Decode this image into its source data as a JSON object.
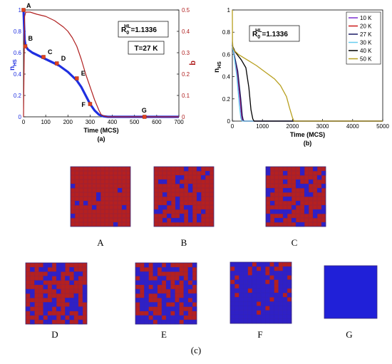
{
  "figure_caption": "(c)",
  "chart_data": [
    {
      "type": "line",
      "panel_label": "(a)",
      "xlabel": "Time (MCS)",
      "ylabel_left": "n",
      "ylabel_left_sub": "HS",
      "ylabel_right": "q",
      "xlim": [
        0,
        700
      ],
      "ylim_left": [
        0,
        1
      ],
      "ylim_right": [
        0,
        0.5
      ],
      "x_ticks": [
        0,
        100,
        200,
        300,
        400,
        500,
        600,
        700
      ],
      "y_ticks_left": [
        0,
        0.2,
        0.4,
        0.6,
        0.8,
        1
      ],
      "y_ticks_right": [
        0,
        0.1,
        0.2,
        0.3,
        0.4,
        0.5
      ],
      "annotation_R": "R",
      "annotation_R_sub": "0",
      "annotation_R_sup": "HL",
      "annotation_R_value": "=1.1336",
      "annotation_T": "T=27 K",
      "series": [
        {
          "axis": "left",
          "color": "#1f2fe0",
          "x": [
            0,
            5,
            10,
            20,
            40,
            60,
            80,
            100,
            120,
            140,
            160,
            180,
            200,
            220,
            240,
            260,
            280,
            300,
            320,
            340,
            360,
            380,
            400,
            500,
            600,
            700
          ],
          "y": [
            1.0,
            0.72,
            0.66,
            0.63,
            0.6,
            0.58,
            0.56,
            0.54,
            0.52,
            0.5,
            0.48,
            0.45,
            0.42,
            0.38,
            0.34,
            0.28,
            0.2,
            0.12,
            0.06,
            0.02,
            0.005,
            0.0,
            0.0,
            0.0,
            0.0,
            0.0
          ]
        },
        {
          "axis": "right",
          "color": "#b02020",
          "x": [
            0,
            5,
            10,
            30,
            60,
            100,
            140,
            180,
            200,
            220,
            240,
            260,
            280,
            300,
            320,
            340,
            350,
            360,
            380,
            400,
            500,
            600,
            700
          ],
          "y": [
            0.0,
            0.47,
            0.49,
            0.49,
            0.48,
            0.47,
            0.45,
            0.42,
            0.4,
            0.37,
            0.33,
            0.27,
            0.2,
            0.14,
            0.08,
            0.03,
            0.01,
            0.005,
            0.0,
            0.0,
            0.0,
            0.0,
            0.0
          ]
        }
      ],
      "markers": [
        {
          "label": "A",
          "x": 0,
          "y": 1.0
        },
        {
          "label": "B",
          "x": 8,
          "y": 0.66
        },
        {
          "label": "C",
          "x": 90,
          "y": 0.56
        },
        {
          "label": "D",
          "x": 150,
          "y": 0.5
        },
        {
          "label": "E",
          "x": 240,
          "y": 0.36
        },
        {
          "label": "F",
          "x": 300,
          "y": 0.12
        },
        {
          "label": "G",
          "x": 545,
          "y": 0.0
        }
      ]
    },
    {
      "type": "line",
      "panel_label": "(b)",
      "xlabel": "Time (MCS)",
      "ylabel": "n",
      "ylabel_sub": "HS",
      "xlim": [
        0,
        5000
      ],
      "ylim": [
        0,
        1
      ],
      "x_ticks": [
        0,
        1000,
        2000,
        3000,
        4000,
        5000
      ],
      "y_ticks": [
        0,
        0.2,
        0.4,
        0.6,
        0.8,
        1
      ],
      "annotation_R": "R",
      "annotation_R_sub": "0",
      "annotation_R_sup": "HL",
      "annotation_R_value": "=1.1336",
      "legend_position": "top-right",
      "series": [
        {
          "name": "10 K",
          "color": "#7b2fd0",
          "x": [
            0,
            50,
            150,
            250,
            300,
            330,
            360,
            5000
          ],
          "y": [
            0.68,
            0.6,
            0.45,
            0.2,
            0.05,
            0.01,
            0.0,
            0.0
          ]
        },
        {
          "name": "20 K",
          "color": "#cc1a1a",
          "x": [
            0,
            60,
            170,
            270,
            320,
            350,
            380,
            5000
          ],
          "y": [
            0.68,
            0.6,
            0.45,
            0.2,
            0.05,
            0.01,
            0.0,
            0.0
          ]
        },
        {
          "name": "27 K",
          "color": "#1a1a66",
          "x": [
            0,
            60,
            180,
            280,
            330,
            360,
            400,
            5000
          ],
          "y": [
            0.68,
            0.6,
            0.45,
            0.2,
            0.05,
            0.01,
            0.0,
            0.0
          ]
        },
        {
          "name": "30 K",
          "color": "#66ccee",
          "x": [
            0,
            50,
            150,
            230,
            280,
            310,
            340,
            5000
          ],
          "y": [
            0.68,
            0.6,
            0.4,
            0.15,
            0.03,
            0.005,
            0.0,
            0.0
          ]
        },
        {
          "name": "40 K",
          "color": "#000000",
          "x": [
            0,
            100,
            300,
            450,
            550,
            620,
            680,
            720,
            5000
          ],
          "y": [
            0.68,
            0.62,
            0.55,
            0.48,
            0.3,
            0.1,
            0.02,
            0.0,
            0.0
          ]
        },
        {
          "name": "50 K",
          "color": "#b8a020",
          "x": [
            0,
            5,
            20,
            50,
            200,
            500,
            800,
            1100,
            1400,
            1600,
            1800,
            1900,
            2000,
            2050,
            5000
          ],
          "y": [
            1.0,
            0.72,
            0.66,
            0.64,
            0.6,
            0.55,
            0.5,
            0.44,
            0.38,
            0.32,
            0.22,
            0.12,
            0.03,
            0.0,
            0.0
          ]
        }
      ]
    }
  ],
  "snapshots": [
    {
      "label": "A",
      "fill_blue": 0.05
    },
    {
      "label": "B",
      "fill_blue": 0.15
    },
    {
      "label": "C",
      "fill_blue": 0.22
    },
    {
      "label": "D",
      "fill_blue": 0.3
    },
    {
      "label": "E",
      "fill_blue": 0.55
    },
    {
      "label": "F",
      "fill_blue": 0.85
    },
    {
      "label": "G",
      "fill_blue": 1.0
    }
  ],
  "colors": {
    "hs": "#b42020",
    "ls": "#2020d8"
  }
}
